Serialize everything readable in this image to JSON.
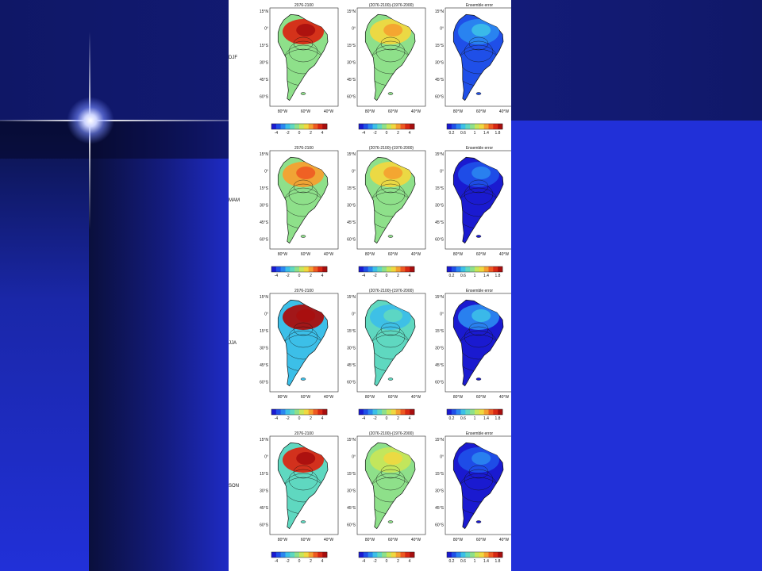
{
  "panel_titles": [
    "2076-2100",
    "(2076-2100)-(1976-2000)",
    "Ensemble error"
  ],
  "season_labels": [
    "DJF",
    "MAM",
    "JJA",
    "SON"
  ],
  "lat_ticks": [
    "15°N",
    "0°",
    "15°S",
    "30°S",
    "45°S",
    "60°S"
  ],
  "lon_ticks": [
    "80°W",
    "60°W",
    "40°W"
  ],
  "colorbar_ticks_anomaly": [
    "-4",
    "-2",
    "0",
    "2",
    "4"
  ],
  "colorbar_ticks_error": [
    "0.2",
    "0.6",
    "1",
    "1.4",
    "1.8"
  ],
  "colors": {
    "background_blue": "#2130d8",
    "figure_bg": "#ffffff",
    "colormap": [
      "#1a1ad0",
      "#1f4fe8",
      "#2a86f0",
      "#3cbfe8",
      "#5fd8c0",
      "#8ee08a",
      "#c6e65a",
      "#f0d840",
      "#f5a030",
      "#ee5a22",
      "#d82814",
      "#a80e0e"
    ]
  }
}
